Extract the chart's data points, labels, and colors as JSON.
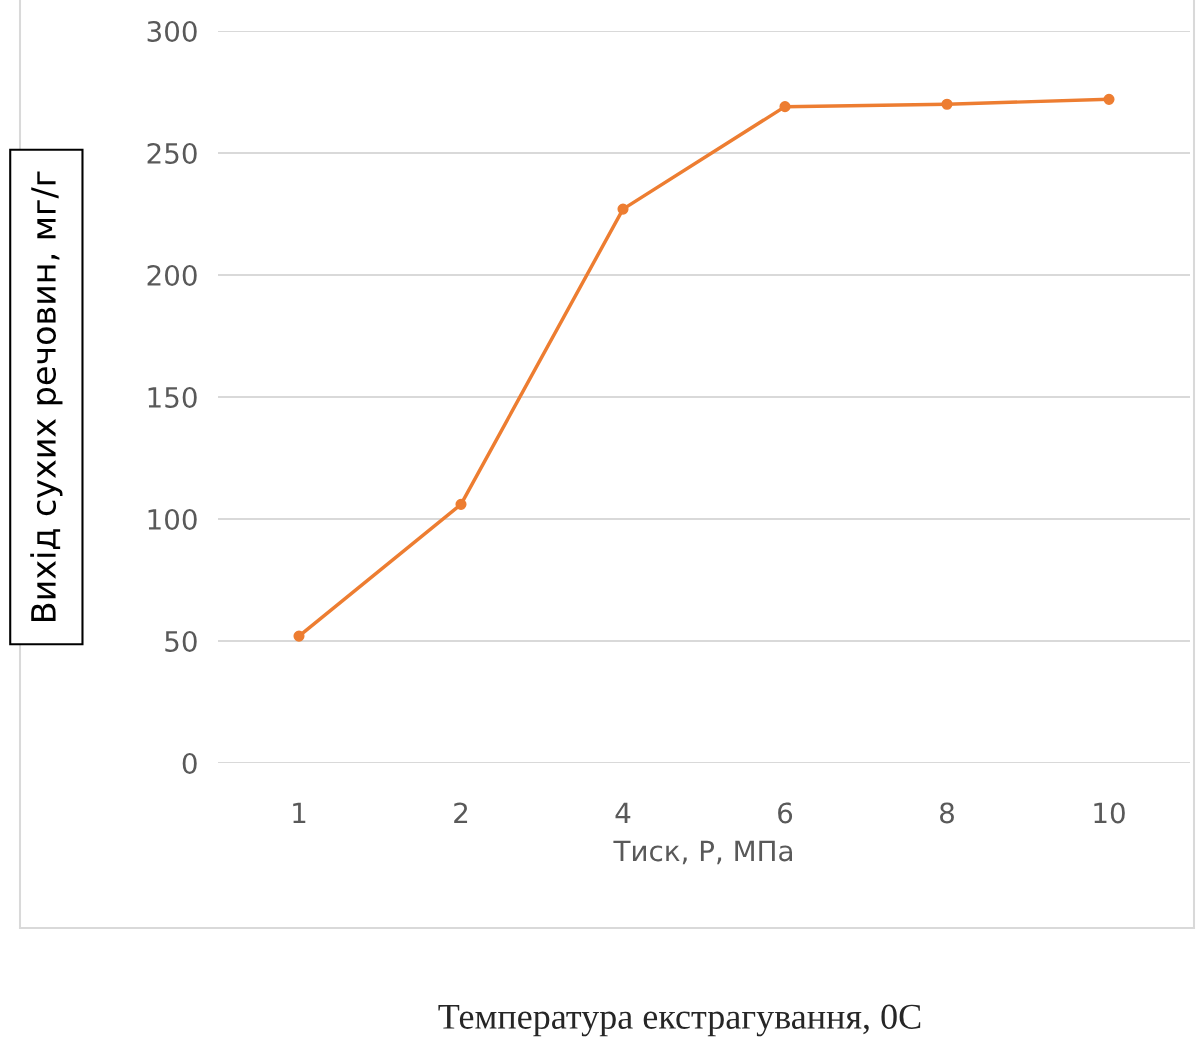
{
  "chart_data": {
    "type": "line",
    "xlabel": "Тиск, P, МПа",
    "ylabel": "Вихід сухих речовин, мг/г",
    "categories": [
      "1",
      "2",
      "4",
      "6",
      "8",
      "10"
    ],
    "series": [
      {
        "color": "#ed7d31",
        "values": [
          52,
          106,
          227,
          269,
          270,
          272
        ]
      }
    ],
    "ylim": [
      0,
      300
    ],
    "yticks": [
      0,
      50,
      100,
      150,
      200,
      250,
      300
    ],
    "grid": "y",
    "marker": "circle",
    "line_style": "solid",
    "annotations": [
      "Температура екстрагування, 0C"
    ]
  }
}
